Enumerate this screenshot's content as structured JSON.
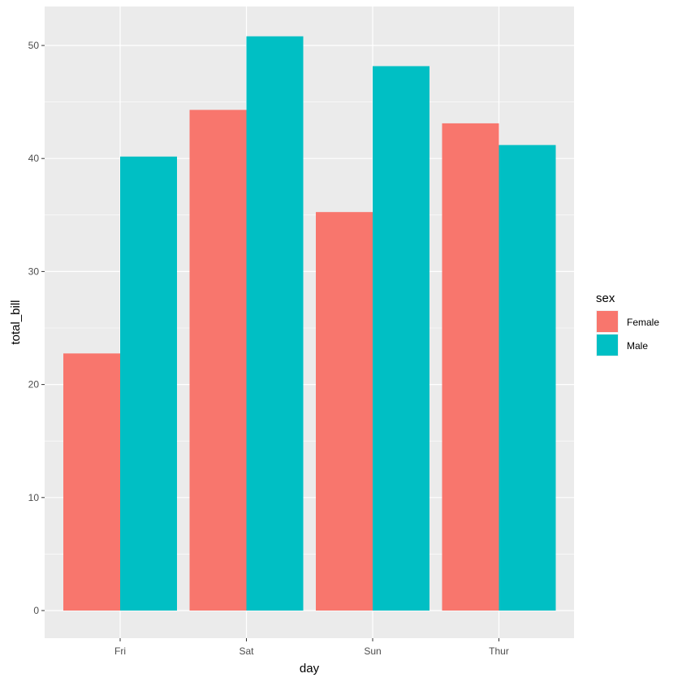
{
  "chart_data": {
    "type": "bar",
    "categories": [
      "Fri",
      "Sat",
      "Sun",
      "Thur"
    ],
    "series": [
      {
        "name": "Female",
        "values": [
          22.75,
          44.3,
          35.26,
          43.11
        ],
        "color": "#F8766D"
      },
      {
        "name": "Male",
        "values": [
          40.17,
          50.81,
          48.17,
          41.19
        ],
        "color": "#00BFC4"
      }
    ],
    "xlabel": "day",
    "ylabel": "total_bill",
    "ylim": [
      0,
      50.81
    ],
    "yticks": [
      "0",
      "10",
      "20",
      "30",
      "40",
      "50"
    ],
    "legend_title": "sex",
    "legend_position": "right",
    "grid": true,
    "panel_color": "#EBEBEB",
    "grid_color": "#FFFFFF"
  }
}
